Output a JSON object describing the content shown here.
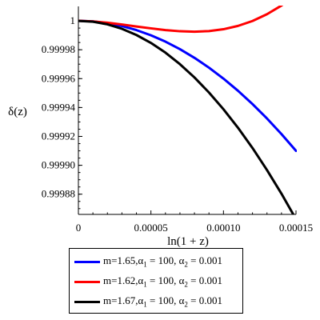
{
  "chart_data": {
    "type": "line",
    "xlabel": "ln(1 + z)",
    "ylabel": "δ(z)",
    "xlim": [
      0,
      0.00015
    ],
    "ylim": [
      0.999866,
      1.00001
    ],
    "x_ticks": [
      0,
      5e-05,
      0.0001,
      0.00015
    ],
    "x_tick_labels": [
      "0",
      "0.00005",
      "0.00010",
      "0.00015"
    ],
    "y_ticks": [
      0.99988,
      0.9999,
      0.99992,
      0.99994,
      0.99996,
      0.99998,
      1
    ],
    "y_tick_labels": [
      "0.99988",
      "0.99990",
      "0.99992",
      "0.99994",
      "0.99996",
      "0.99998",
      "1"
    ],
    "grid": false,
    "legend_position": "bottom",
    "series": [
      {
        "name": "m=1.65,α1 = 100, α2 = 0.001",
        "color": "#0000ff",
        "x": [
          0,
          1e-05,
          2e-05,
          3e-05,
          4e-05,
          5e-05,
          6e-05,
          7e-05,
          8e-05,
          9e-05,
          0.0001,
          0.00011,
          0.00012,
          0.00013,
          0.00014,
          0.00015
        ],
        "y": [
          1.0,
          0.9999996,
          0.9999984,
          0.9999964,
          0.9999936,
          0.99999,
          0.9999856,
          0.9999804,
          0.9999744,
          0.9999676,
          0.99996,
          0.9999516,
          0.9999424,
          0.9999324,
          0.9999216,
          0.99991
        ]
      },
      {
        "name": "m=1.62,α1 = 100, α2 = 0.001",
        "color": "#ff0000",
        "x": [
          0,
          1e-05,
          2e-05,
          3e-05,
          4e-05,
          5e-05,
          6e-05,
          7e-05,
          8e-05,
          9e-05,
          0.0001,
          0.00011,
          0.00012,
          0.00013,
          0.00014,
          0.00015
        ],
        "y": [
          1.0,
          0.9999996,
          0.9999987,
          0.9999975,
          0.9999961,
          0.9999948,
          0.9999936,
          0.9999928,
          0.9999925,
          0.9999929,
          0.9999942,
          0.9999965,
          0.9999999,
          1.0000046,
          1.0000106,
          1.000018
        ]
      },
      {
        "name": "m=1.67,α1 = 100, α2 = 0.001",
        "color": "#000000",
        "x": [
          0,
          1e-05,
          2e-05,
          3e-05,
          4e-05,
          5e-05,
          6e-05,
          7e-05,
          8e-05,
          9e-05,
          0.0001,
          0.00011,
          0.00012,
          0.00013,
          0.00014,
          0.00015
        ],
        "y": [
          1.0,
          0.9999994,
          0.9999976,
          0.9999945,
          0.9999902,
          0.9999847,
          0.999978,
          0.99997,
          0.9999608,
          0.9999504,
          0.9999388,
          0.999926,
          0.999912,
          0.9998967,
          0.9998803,
          0.9998627
        ]
      }
    ]
  },
  "legend": {
    "entries": [
      {
        "m": "m=1.65,α",
        "s1": "1",
        "mid": " = 100, α",
        "s2": "2",
        "end": " = 0.001",
        "color": "#0000ff"
      },
      {
        "m": "m=1.62,α",
        "s1": "1",
        "mid": " = 100, α",
        "s2": "2",
        "end": " = 0.001",
        "color": "#ff0000"
      },
      {
        "m": "m=1.67,α",
        "s1": "1",
        "mid": " = 100, α",
        "s2": "2",
        "end": " = 0.001",
        "color": "#000000"
      }
    ]
  }
}
